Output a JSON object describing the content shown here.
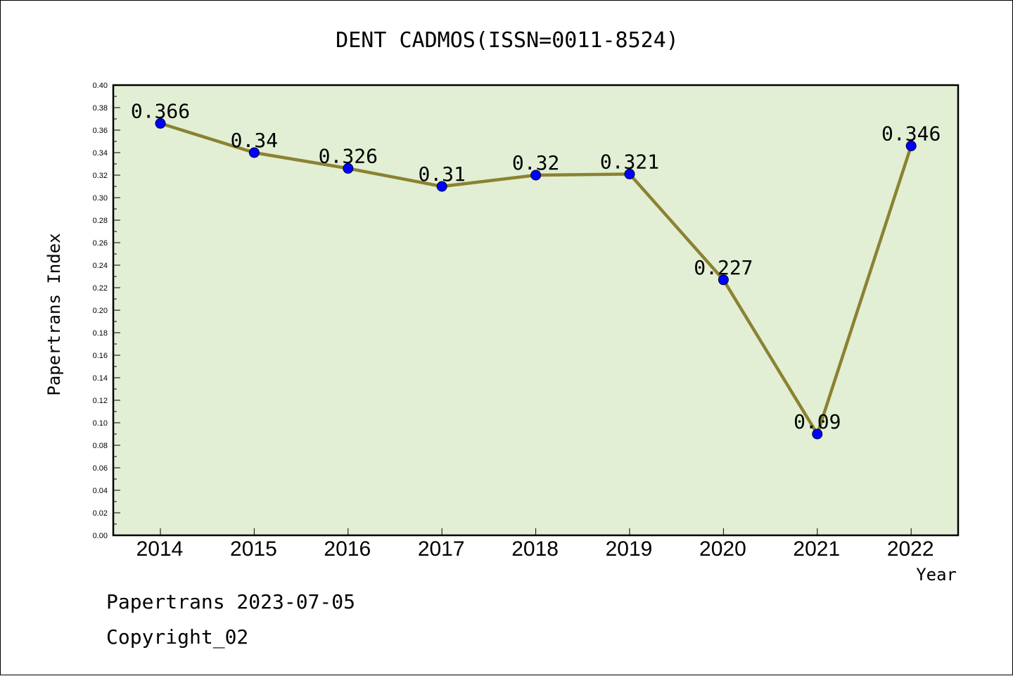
{
  "chart_data": {
    "type": "line",
    "title": "DENT CADMOS(ISSN=0011-8524)",
    "xlabel": "Year",
    "ylabel": "Papertrans Index",
    "categories": [
      "2014",
      "2015",
      "2016",
      "2017",
      "2018",
      "2019",
      "2020",
      "2021",
      "2022"
    ],
    "series": [
      {
        "values": [
          0.366,
          0.34,
          0.326,
          0.31,
          0.32,
          0.321,
          0.227,
          0.09,
          0.346
        ],
        "labels": [
          "0.366",
          "0.34",
          "0.326",
          "0.31",
          "0.32",
          "0.321",
          "0.227",
          "0.09",
          "0.346"
        ],
        "line_color": "#8b8232",
        "marker_color": "#0000ff"
      }
    ],
    "ylim": [
      0,
      0.4
    ],
    "ytick_step": 0.02,
    "ytick_labels": [
      "0.00",
      "0.02",
      "0.04",
      "0.06",
      "0.08",
      "0.10",
      "0.12",
      "0.14",
      "0.16",
      "0.18",
      "0.20",
      "0.22",
      "0.24",
      "0.26",
      "0.28",
      "0.30",
      "0.32",
      "0.34",
      "0.36",
      "0.38",
      "0.40"
    ],
    "grid": false,
    "legend": "none",
    "plot_background": "#e2efd5"
  },
  "footer": {
    "line1": "Papertrans 2023-07-05",
    "line2": "Copyright_02"
  }
}
